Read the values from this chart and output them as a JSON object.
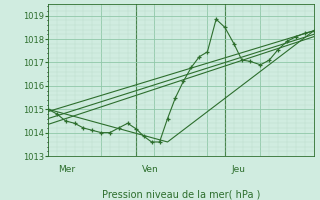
{
  "bg_color": "#d0ece0",
  "grid_major_color": "#90c8a8",
  "grid_minor_color": "#b8dcc8",
  "line_color": "#2d6e2d",
  "ylim": [
    1013.0,
    1019.5
  ],
  "xlim": [
    0.0,
    1.0
  ],
  "yticks": [
    1013,
    1014,
    1015,
    1016,
    1017,
    1018,
    1019
  ],
  "xlabel": "Pression niveau de la mer( hPa )",
  "day_vlines": [
    0.333,
    0.667
  ],
  "day_labels": [
    [
      "Mer",
      0.04
    ],
    [
      "Ven",
      0.355
    ],
    [
      "Jeu",
      0.69
    ]
  ],
  "main_x": [
    0.0,
    0.033,
    0.066,
    0.1,
    0.133,
    0.166,
    0.2,
    0.233,
    0.266,
    0.3,
    0.333,
    0.36,
    0.39,
    0.42,
    0.45,
    0.48,
    0.51,
    0.54,
    0.57,
    0.6,
    0.633,
    0.666,
    0.7,
    0.73,
    0.76,
    0.8,
    0.833,
    0.866,
    0.9,
    0.933,
    0.966,
    1.0
  ],
  "main_y": [
    1015.0,
    1014.8,
    1014.5,
    1014.4,
    1014.2,
    1014.1,
    1014.0,
    1014.0,
    1014.2,
    1014.4,
    1014.15,
    1013.85,
    1013.6,
    1013.6,
    1014.6,
    1015.5,
    1016.2,
    1016.8,
    1017.25,
    1017.45,
    1018.85,
    1018.5,
    1017.8,
    1017.1,
    1017.05,
    1016.9,
    1017.1,
    1017.55,
    1017.9,
    1018.1,
    1018.25,
    1018.35
  ],
  "straight_lines": [
    {
      "x": [
        0.0,
        1.0
      ],
      "y": [
        1014.9,
        1018.35
      ]
    },
    {
      "x": [
        0.0,
        1.0
      ],
      "y": [
        1014.6,
        1018.2
      ]
    },
    {
      "x": [
        0.0,
        1.0
      ],
      "y": [
        1014.35,
        1018.1
      ]
    },
    {
      "x": [
        0.0,
        0.45,
        1.0
      ],
      "y": [
        1015.0,
        1013.6,
        1018.35
      ]
    }
  ]
}
